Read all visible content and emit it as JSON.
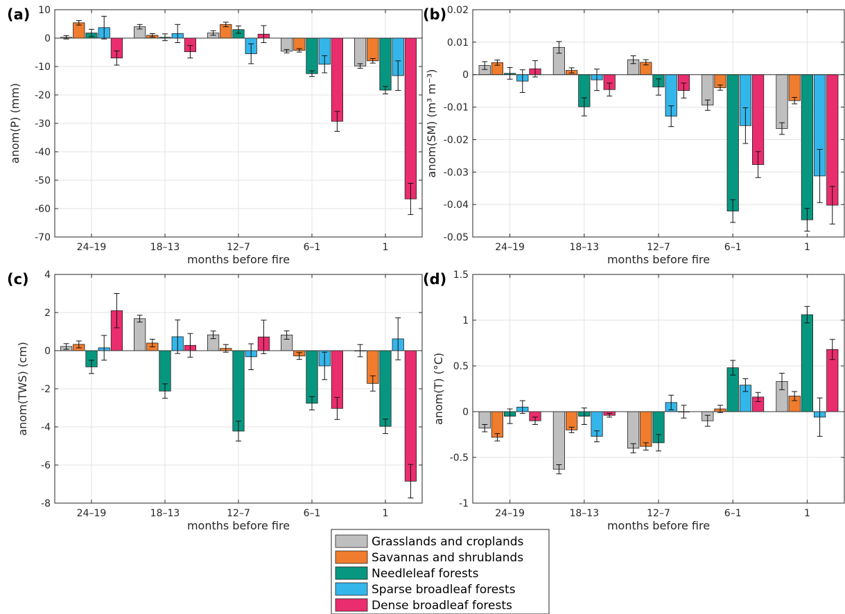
{
  "figure": {
    "xlabel": "months before fire",
    "categories": [
      "24–19",
      "18–13",
      "12–7",
      "6–1",
      "1"
    ]
  },
  "legend": {
    "entries": [
      {
        "label": "Grasslands and croplands",
        "color": "#bfbfbf"
      },
      {
        "label": "Savannas and shrublands",
        "color": "#f07c2d"
      },
      {
        "label": "Needleleaf forests",
        "color": "#079780"
      },
      {
        "label": "Sparse broadleaf forests",
        "color": "#34b6ea"
      },
      {
        "label": "Dense broadleaf forests",
        "color": "#ea2d6e"
      }
    ]
  },
  "chart_data": [
    {
      "type": "bar",
      "panel": "(a)",
      "ylabel": "anom(P) (mm)",
      "xlabel": "months before fire",
      "categories": [
        "24–19",
        "18–13",
        "12–7",
        "6–1",
        "1"
      ],
      "ylim": [
        -70,
        10
      ],
      "yticks": [
        10,
        0,
        -10,
        -20,
        -30,
        -40,
        -50,
        -60,
        -70
      ],
      "ytick_labels": [
        "10",
        "0",
        "-10",
        "-20",
        "-30",
        "-40",
        "-50",
        "-60",
        "-70"
      ],
      "grid": true,
      "series": [
        {
          "name": "Grasslands and croplands",
          "values": [
            0.3,
            4.0,
            1.8,
            -4.6,
            -9.8
          ],
          "errors": [
            0.6,
            0.8,
            0.8,
            0.6,
            0.8
          ]
        },
        {
          "name": "Savannas and shrublands",
          "values": [
            5.4,
            1.0,
            4.8,
            -4.3,
            -8.0
          ],
          "errors": [
            0.8,
            0.6,
            0.8,
            0.6,
            0.8
          ]
        },
        {
          "name": "Needleleaf forests",
          "values": [
            1.8,
            0.3,
            3.0,
            -12.5,
            -18.3
          ],
          "errors": [
            1.3,
            1.2,
            1.3,
            1.0,
            1.3
          ]
        },
        {
          "name": "Sparse broadleaf forests",
          "values": [
            3.7,
            1.6,
            -5.5,
            -9.2,
            -13.2
          ],
          "errors": [
            4.0,
            3.2,
            3.5,
            3.0,
            5.2
          ]
        },
        {
          "name": "Dense broadleaf forests",
          "values": [
            -7.0,
            -4.8,
            1.4,
            -29.3,
            -56.6
          ],
          "errors": [
            2.5,
            2.2,
            3.0,
            3.5,
            5.5
          ]
        }
      ]
    },
    {
      "type": "bar",
      "panel": "(b)",
      "ylabel": "anom(SM) (m³ m⁻³)",
      "xlabel": "months before fire",
      "categories": [
        "24–19",
        "18–13",
        "12–7",
        "6–1",
        "1"
      ],
      "ylim": [
        -0.05,
        0.02
      ],
      "yticks": [
        0.02,
        0.01,
        0,
        -0.01,
        -0.02,
        -0.03,
        -0.04,
        -0.05
      ],
      "ytick_labels": [
        "0.02",
        "0.01",
        "0",
        "-0.01",
        "-0.02",
        "-0.03",
        "-0.04",
        "-0.05"
      ],
      "grid": true,
      "series": [
        {
          "name": "Grasslands and croplands",
          "values": [
            0.0028,
            0.0084,
            0.0046,
            -0.0094,
            -0.0166
          ],
          "errors": [
            0.0012,
            0.0018,
            0.0012,
            0.0016,
            0.0018
          ]
        },
        {
          "name": "Savannas and shrublands",
          "values": [
            0.0037,
            0.0013,
            0.0038,
            -0.004,
            -0.008
          ],
          "errors": [
            0.0008,
            0.0008,
            0.0008,
            0.0008,
            0.001
          ]
        },
        {
          "name": "Needleleaf forests",
          "values": [
            0.0004,
            -0.0099,
            -0.0038,
            -0.042,
            -0.0447
          ],
          "errors": [
            0.0018,
            0.0028,
            0.0025,
            0.0035,
            0.0035
          ]
        },
        {
          "name": "Sparse broadleaf forests",
          "values": [
            -0.002,
            -0.0016,
            -0.0128,
            -0.0157,
            -0.0312
          ],
          "errors": [
            0.0035,
            0.0033,
            0.0032,
            0.0055,
            0.0082
          ]
        },
        {
          "name": "Dense broadleaf forests",
          "values": [
            0.0018,
            -0.0046,
            -0.0049,
            -0.0277,
            -0.0402
          ],
          "errors": [
            0.0025,
            0.002,
            0.0023,
            0.004,
            0.0058
          ]
        }
      ]
    },
    {
      "type": "bar",
      "panel": "(c)",
      "ylabel": "anom(TWS) (cm)",
      "xlabel": "months before fire",
      "categories": [
        "24–19",
        "18–13",
        "12–7",
        "6–1",
        "1"
      ],
      "ylim": [
        -8,
        4
      ],
      "yticks": [
        4,
        2,
        0,
        -2,
        -4,
        -6,
        -8
      ],
      "ytick_labels": [
        "4",
        "2",
        "0",
        "-2",
        "-4",
        "-6",
        "-8"
      ],
      "grid": true,
      "series": [
        {
          "name": "Grasslands and croplands",
          "values": [
            0.22,
            1.68,
            0.83,
            0.82,
            0.0
          ],
          "errors": [
            0.15,
            0.18,
            0.2,
            0.22,
            0.32
          ]
        },
        {
          "name": "Savannas and shrublands",
          "values": [
            0.33,
            0.4,
            0.12,
            -0.28,
            -1.72
          ],
          "errors": [
            0.18,
            0.2,
            0.2,
            0.18,
            0.4
          ]
        },
        {
          "name": "Needleleaf forests",
          "values": [
            -0.85,
            -2.12,
            -4.22,
            -2.76,
            -3.97
          ],
          "errors": [
            0.35,
            0.38,
            0.52,
            0.35,
            0.38
          ]
        },
        {
          "name": "Sparse broadleaf forests",
          "values": [
            0.15,
            0.73,
            -0.32,
            -0.8,
            0.62
          ],
          "errors": [
            0.65,
            0.88,
            0.68,
            0.72,
            1.1
          ]
        },
        {
          "name": "Dense broadleaf forests",
          "values": [
            2.1,
            0.28,
            0.72,
            -3.03,
            -6.85
          ],
          "errors": [
            0.9,
            0.62,
            0.88,
            0.58,
            0.88
          ]
        }
      ]
    },
    {
      "type": "bar",
      "panel": "(d)",
      "ylabel": "anom(T) (°C)",
      "xlabel": "months before fire",
      "categories": [
        "24–19",
        "18–13",
        "12–7",
        "6–1",
        "1"
      ],
      "ylim": [
        -1,
        1.5
      ],
      "yticks": [
        1.5,
        1,
        0.5,
        0,
        -0.5,
        -1
      ],
      "ytick_labels": [
        "1.5",
        "1",
        "0.5",
        "0",
        "-0.5",
        "-1"
      ],
      "grid": true,
      "series": [
        {
          "name": "Grasslands and croplands",
          "values": [
            -0.18,
            -0.63,
            -0.4,
            -0.1,
            0.33
          ],
          "errors": [
            0.04,
            0.05,
            0.05,
            0.06,
            0.09
          ]
        },
        {
          "name": "Savannas and shrublands",
          "values": [
            -0.28,
            -0.2,
            -0.38,
            0.03,
            0.17
          ],
          "errors": [
            0.04,
            0.03,
            0.04,
            0.04,
            0.05
          ]
        },
        {
          "name": "Needleleaf forests",
          "values": [
            -0.05,
            -0.05,
            -0.34,
            0.48,
            1.06
          ],
          "errors": [
            0.08,
            0.09,
            0.09,
            0.08,
            0.09
          ]
        },
        {
          "name": "Sparse broadleaf forests",
          "values": [
            0.05,
            -0.27,
            0.1,
            0.29,
            -0.06
          ],
          "errors": [
            0.07,
            0.06,
            0.08,
            0.07,
            0.21
          ]
        },
        {
          "name": "Dense broadleaf forests",
          "values": [
            -0.1,
            -0.04,
            0.0,
            0.16,
            0.68
          ],
          "errors": [
            0.04,
            0.02,
            0.07,
            0.05,
            0.11
          ]
        }
      ]
    }
  ]
}
